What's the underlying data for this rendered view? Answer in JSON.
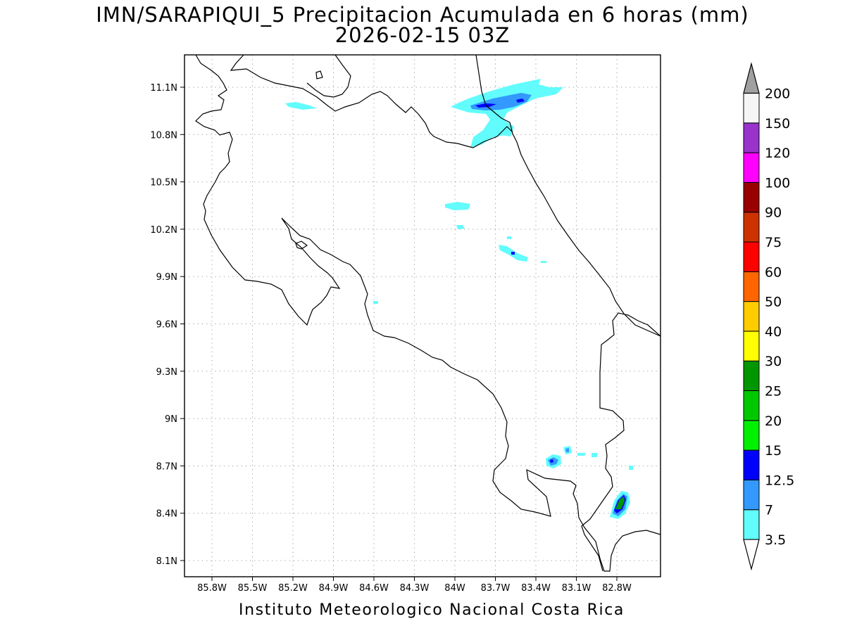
{
  "title_line1": "IMN/SARAPIQUI_5 Precipitacion Acumulada en 6 horas (mm)",
  "title_line2": "2026-02-15 03Z",
  "footer": "Instituto Meteorologico Nacional Costa Rica",
  "map": {
    "lon_ticks": [
      "85.8W",
      "85.5W",
      "85.2W",
      "84.9W",
      "84.6W",
      "84.3W",
      "84W",
      "83.7W",
      "83.4W",
      "83.1W",
      "82.8W"
    ],
    "lat_ticks": [
      "11.1N",
      "10.8N",
      "10.5N",
      "10.2N",
      "9.9N",
      "9.6N",
      "9.3N",
      "9N",
      "8.7N",
      "8.4N",
      "8.1N"
    ]
  },
  "colorbar": {
    "levels": [
      "3.5",
      "7",
      "12.5",
      "15",
      "20",
      "25",
      "30",
      "40",
      "50",
      "60",
      "75",
      "90",
      "100",
      "120",
      "150",
      "200"
    ],
    "colors": [
      "#62fcfc",
      "#3399ff",
      "#0000ff",
      "#00f000",
      "#00c800",
      "#009600",
      "#ffff00",
      "#ffcc00",
      "#ff6600",
      "#ff0000",
      "#cc3300",
      "#990000",
      "#ff00ff",
      "#9933cc",
      "#f5f5f5",
      "#a0a0a0"
    ]
  }
}
